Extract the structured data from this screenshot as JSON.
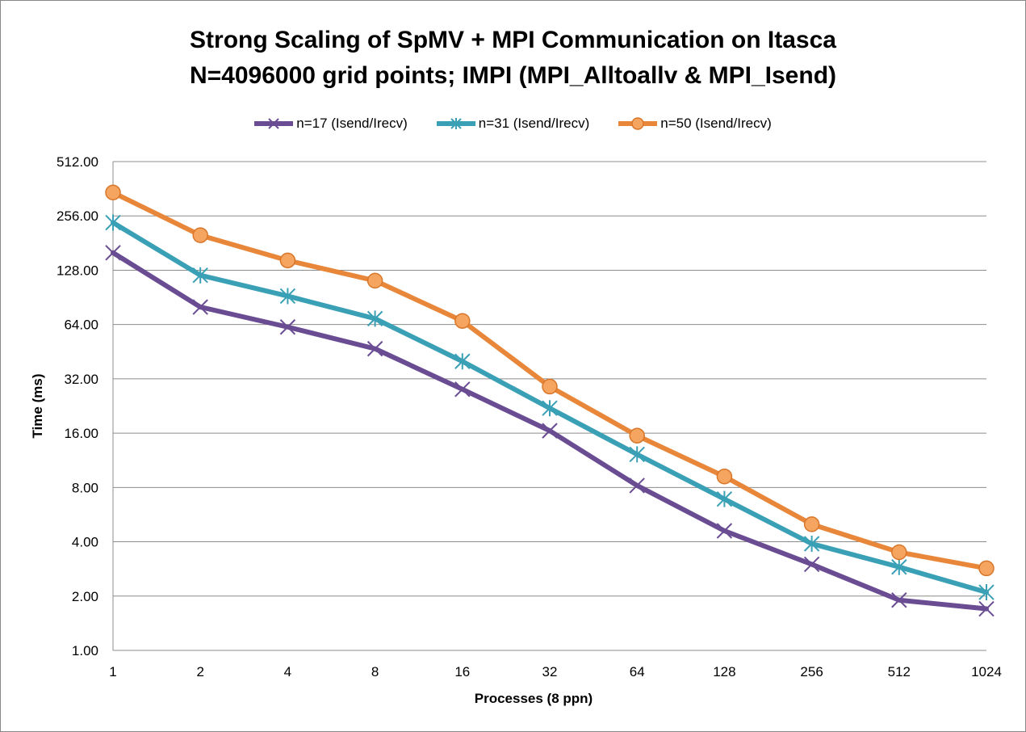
{
  "chart_data": {
    "type": "line",
    "title_lines": [
      "Strong Scaling of SpMV + MPI Communication on Itasca",
      "N=4096000 grid points; IMPI (MPI_Alltoallv & MPI_Isend)"
    ],
    "xlabel": "Processes (8 ppn)",
    "ylabel": "Time (ms)",
    "y_scale": "log2",
    "ylim": [
      1,
      512
    ],
    "y_ticks": [
      1,
      2,
      4,
      8,
      16,
      32,
      64,
      128,
      256,
      512
    ],
    "y_tick_labels": [
      "1.00",
      "2.00",
      "4.00",
      "8.00",
      "16.00",
      "32.00",
      "64.00",
      "128.00",
      "256.00",
      "512.00"
    ],
    "categories": [
      "1",
      "2",
      "4",
      "8",
      "16",
      "32",
      "64",
      "128",
      "256",
      "512",
      "1024"
    ],
    "legend_position": "top",
    "grid": true,
    "series": [
      {
        "name": "n=17 (Isend/Irecv)",
        "color": "#6a4c93",
        "marker": "x",
        "values": [
          160,
          80,
          62,
          47,
          28,
          16.5,
          8.2,
          4.6,
          3.0,
          1.9,
          1.7
        ]
      },
      {
        "name": "n=31 (Isend/Irecv)",
        "color": "#3aa0b5",
        "marker": "asterisk",
        "values": [
          235,
          120,
          92,
          69,
          40,
          22,
          12.2,
          6.9,
          3.9,
          2.9,
          2.1
        ]
      },
      {
        "name": "n=50 (Isend/Irecv)",
        "color": "#e8873a",
        "marker": "circle",
        "values": [
          345,
          200,
          145,
          112,
          67,
          29,
          15.5,
          9.2,
          5.0,
          3.5,
          2.85
        ]
      }
    ]
  }
}
